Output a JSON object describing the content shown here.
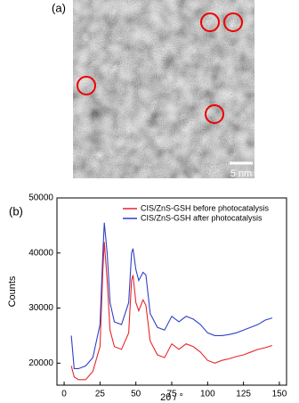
{
  "panel_a": {
    "label": "(a)",
    "scale_bar": "5 nm"
  },
  "chart_data": {
    "type": "line",
    "panel_label": "(b)",
    "x_label": "2θ / °",
    "y_label": "Counts",
    "x": [
      5,
      7,
      10,
      15,
      20,
      25,
      27,
      28,
      30,
      32,
      35,
      40,
      45,
      47,
      48,
      50,
      52,
      55,
      57,
      60,
      65,
      70,
      75,
      80,
      85,
      90,
      95,
      100,
      105,
      110,
      115,
      120,
      125,
      130,
      135,
      140,
      145
    ],
    "series": [
      {
        "name": "CIS/ZnS-GSH before photocatalysis",
        "color": "#e8262a",
        "values": [
          19500,
          17500,
          17000,
          17000,
          18500,
          23000,
          37000,
          42000,
          35000,
          26000,
          23000,
          22500,
          25500,
          35000,
          36000,
          31000,
          29500,
          31500,
          30500,
          24000,
          21500,
          21000,
          23500,
          22500,
          23500,
          23000,
          22000,
          20500,
          20000,
          20500,
          20800,
          21200,
          21500,
          22000,
          22500,
          22800,
          23200
        ]
      },
      {
        "name": "CIS/ZnS-GSH after photocatalysis",
        "color": "#2f3fc8",
        "values": [
          25000,
          19000,
          19000,
          19500,
          21000,
          27000,
          40000,
          45500,
          40000,
          31000,
          27500,
          27000,
          31000,
          40000,
          40800,
          37000,
          35000,
          36500,
          36000,
          29000,
          26500,
          26000,
          28500,
          27500,
          28500,
          28000,
          27000,
          25500,
          25000,
          25000,
          25200,
          25500,
          26000,
          26500,
          27000,
          27800,
          28200
        ]
      }
    ],
    "xlim": [
      -5,
      155
    ],
    "xticks": [
      0,
      25,
      50,
      75,
      100,
      125,
      150
    ],
    "ylim": [
      16000,
      50000
    ],
    "yticks": [
      20000,
      30000,
      40000,
      50000
    ],
    "legend": "upper-right"
  }
}
